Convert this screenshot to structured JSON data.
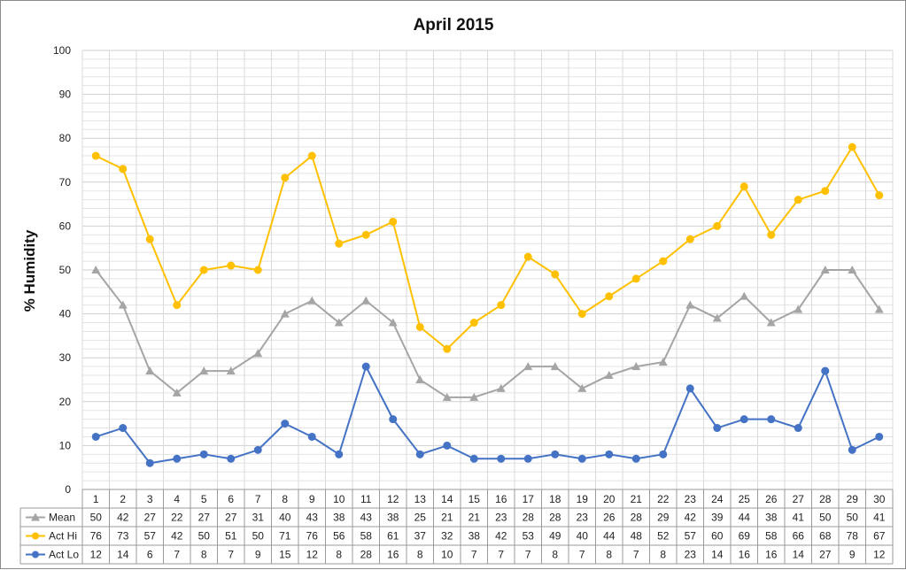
{
  "chart_data": {
    "type": "line",
    "title": "April 2015",
    "ylabel": "% Humidity",
    "xlabel": "",
    "ylim": [
      0,
      100
    ],
    "y_ticks": [
      0,
      10,
      20,
      30,
      40,
      50,
      60,
      70,
      80,
      90,
      100
    ],
    "minor_grid_step": 2,
    "grid": true,
    "legend": "data-table-left",
    "categories": [
      "1",
      "2",
      "3",
      "4",
      "5",
      "6",
      "7",
      "8",
      "9",
      "10",
      "11",
      "12",
      "13",
      "14",
      "15",
      "16",
      "17",
      "18",
      "19",
      "20",
      "21",
      "22",
      "23",
      "24",
      "25",
      "26",
      "27",
      "28",
      "29",
      "30"
    ],
    "series": [
      {
        "name": "Mean",
        "color": "#a5a5a5",
        "marker": "triangle",
        "values": [
          50,
          42,
          27,
          22,
          27,
          27,
          31,
          40,
          43,
          38,
          43,
          38,
          25,
          21,
          21,
          23,
          28,
          28,
          23,
          26,
          28,
          29,
          42,
          39,
          44,
          38,
          41,
          50,
          50,
          41
        ]
      },
      {
        "name": "Act Hi",
        "color": "#ffc000",
        "marker": "circle",
        "values": [
          76,
          73,
          57,
          42,
          50,
          51,
          50,
          71,
          76,
          56,
          58,
          61,
          37,
          32,
          38,
          42,
          53,
          49,
          40,
          44,
          48,
          52,
          57,
          60,
          69,
          58,
          66,
          68,
          78,
          67
        ]
      },
      {
        "name": "Act Lo",
        "color": "#4472c4",
        "marker": "circle",
        "values": [
          12,
          14,
          6,
          7,
          8,
          7,
          9,
          15,
          12,
          8,
          28,
          16,
          8,
          10,
          7,
          7,
          7,
          8,
          7,
          8,
          7,
          8,
          23,
          14,
          16,
          16,
          14,
          27,
          9,
          12
        ]
      }
    ]
  }
}
